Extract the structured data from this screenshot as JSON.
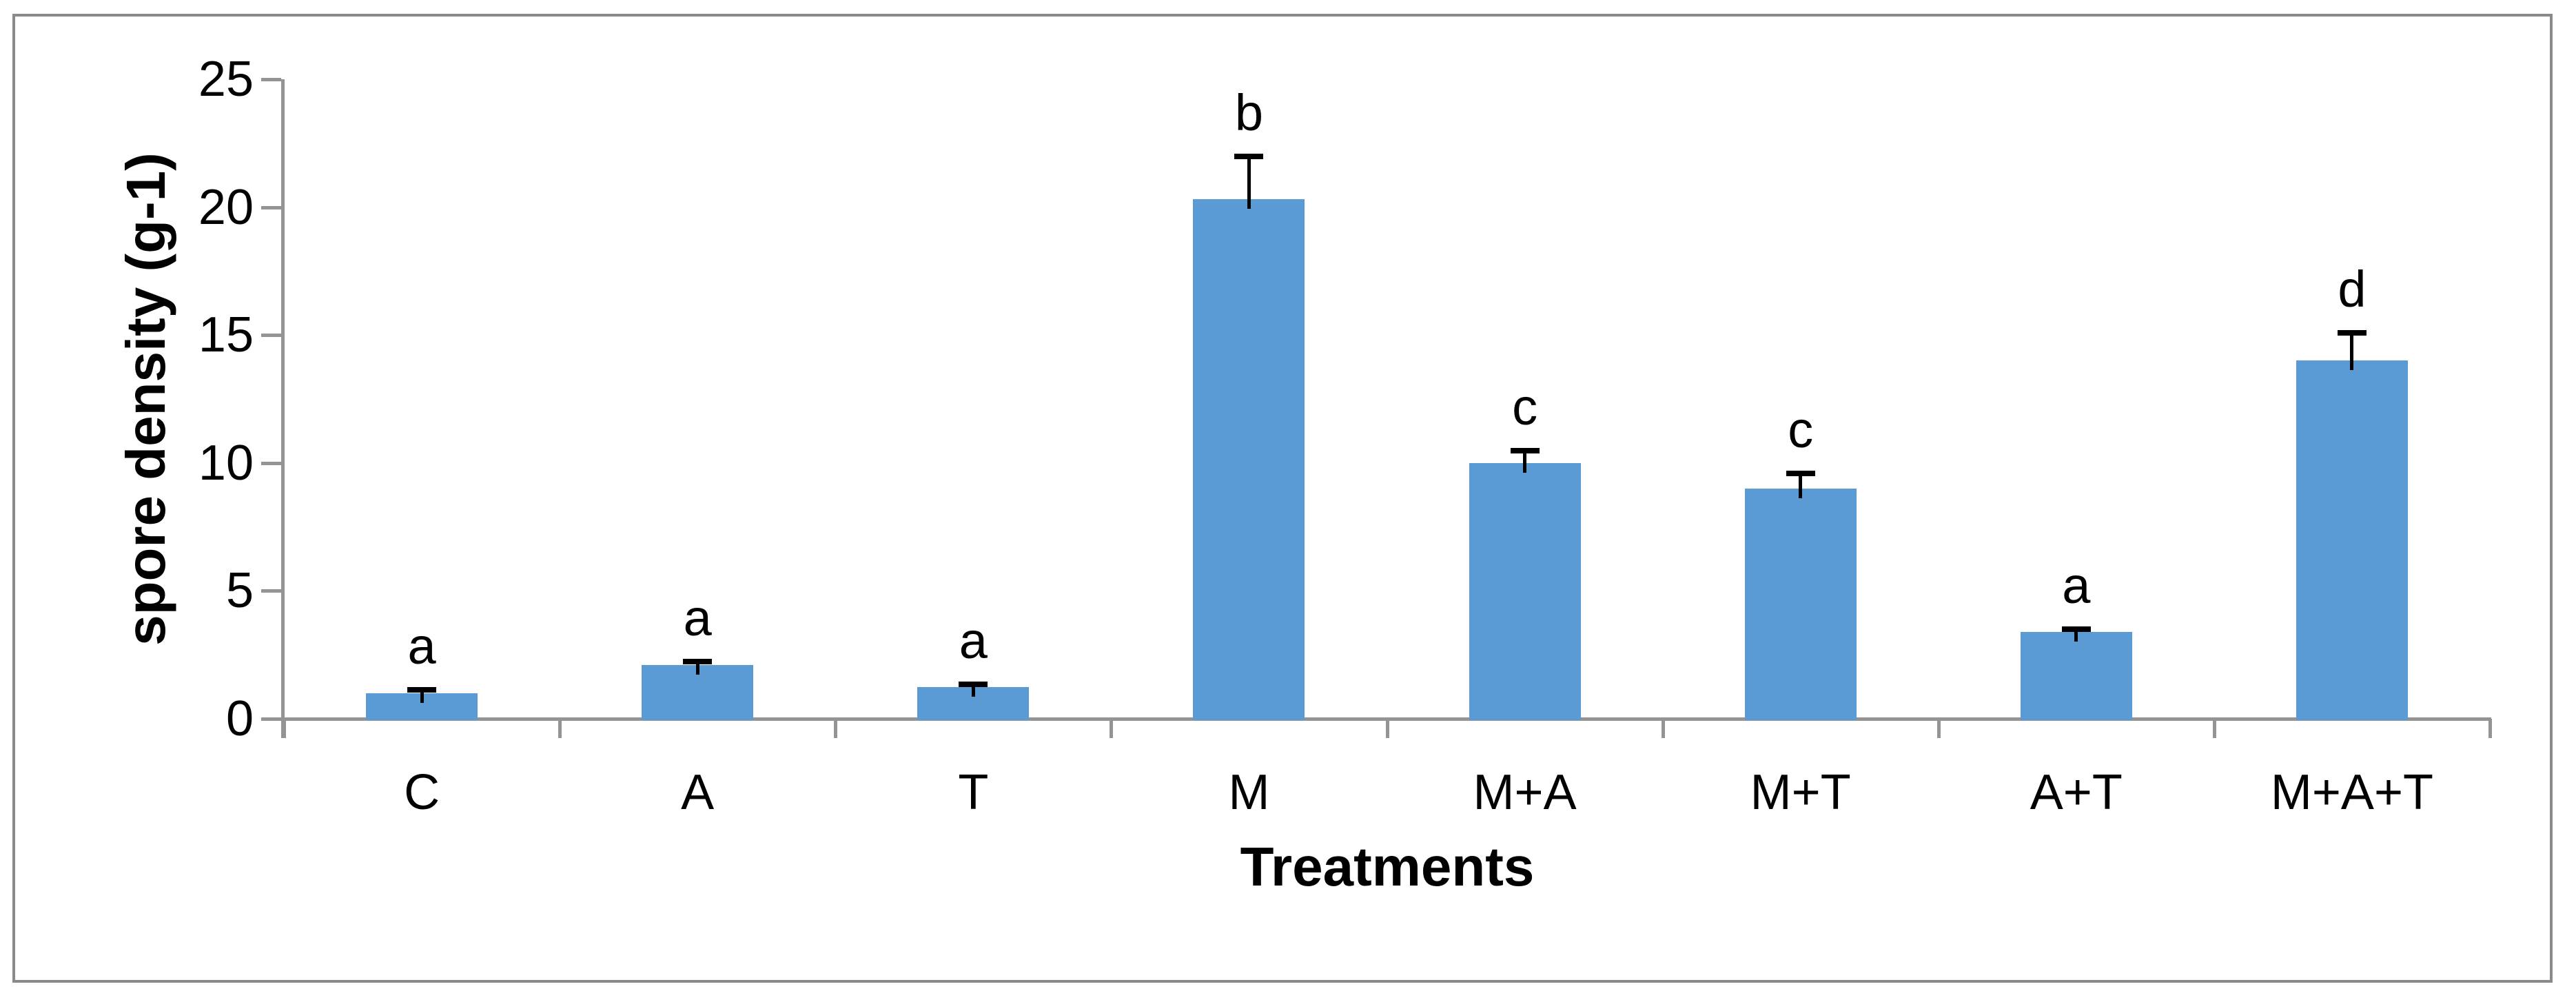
{
  "chart_data": {
    "type": "bar",
    "title": "",
    "xlabel": "Treatments",
    "ylabel": "spore density (g-1)",
    "categories": [
      "C",
      "A",
      "T",
      "M",
      "M+A",
      "M+T",
      "A+T",
      "M+A+T"
    ],
    "values": [
      1.0,
      2.1,
      1.25,
      20.3,
      10.0,
      9.0,
      3.4,
      14.0
    ],
    "errors_plus": [
      0.25,
      0.25,
      0.2,
      1.8,
      0.6,
      0.7,
      0.2,
      1.2
    ],
    "sig_letters": [
      "a",
      "a",
      "a",
      "b",
      "c",
      "c",
      "a",
      "d"
    ],
    "yticks": [
      "0",
      "5",
      "10",
      "15",
      "20",
      "25"
    ],
    "ylim": [
      0,
      25
    ],
    "grid": false,
    "legend": false,
    "colors": {
      "bar_fill": "#5B9BD5",
      "axis_line": "#949494",
      "error_bar": "#000000",
      "frame_border": "#8a8a8a",
      "text": "#000000",
      "background": "#ffffff"
    }
  }
}
